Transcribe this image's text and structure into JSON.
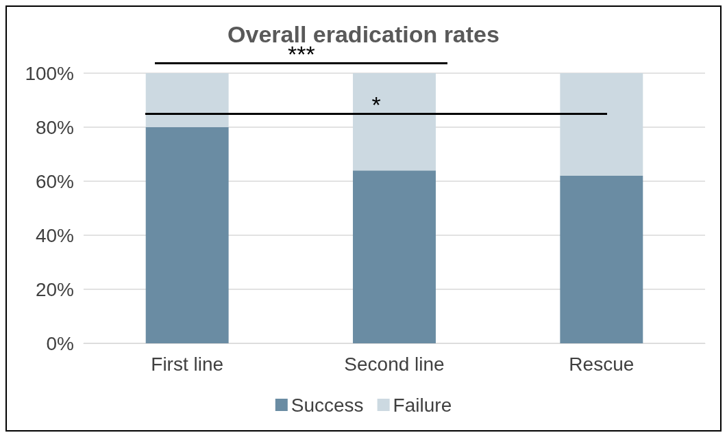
{
  "chart_data": {
    "type": "bar",
    "title": "Overall eradication rates",
    "categories": [
      "First line",
      "Second line",
      "Rescue"
    ],
    "stacked": true,
    "series": [
      {
        "name": "Success",
        "color": "#6a8ca3",
        "values": [
          80,
          64,
          62
        ]
      },
      {
        "name": "Failure",
        "color": "#ccd9e1",
        "values": [
          20,
          36,
          38
        ]
      }
    ],
    "ylim": [
      0,
      100
    ],
    "yticks": [
      {
        "value": 0,
        "label": "0%"
      },
      {
        "value": 20,
        "label": "20%"
      },
      {
        "value": 40,
        "label": "40%"
      },
      {
        "value": 60,
        "label": "60%"
      },
      {
        "value": 80,
        "label": "80%"
      },
      {
        "value": 100,
        "label": "100%"
      }
    ],
    "grid": "y",
    "legend": "bottom",
    "annotations": [
      "***",
      "*"
    ]
  }
}
